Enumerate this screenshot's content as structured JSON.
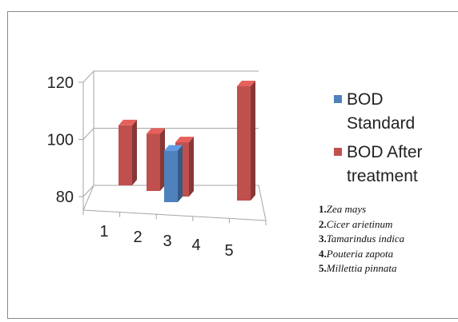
{
  "chart_data": {
    "type": "bar",
    "subtype": "3d-column",
    "categories": [
      "1",
      "2",
      "3",
      "4",
      "5"
    ],
    "series": [
      {
        "name": "BOD Standard",
        "color": "#4f81bd",
        "values": [
          null,
          null,
          98,
          null,
          null
        ]
      },
      {
        "name": "BOD After treatment",
        "color": "#c0504d",
        "values": [
          101,
          100,
          null,
          99,
          120
        ]
      }
    ],
    "ylim": [
      80,
      120
    ],
    "yticks": [
      "80",
      "100",
      "120"
    ],
    "grid": true,
    "legend_position": "right"
  },
  "legend": [
    {
      "label": "BOD Standard",
      "color": "#4f81bd"
    },
    {
      "label": "BOD After treatment",
      "color": "#c0504d"
    }
  ],
  "species": [
    {
      "num": "1.",
      "name": "Zea mays"
    },
    {
      "num": "2.",
      "name": "Cicer arietinum"
    },
    {
      "num": "3.",
      "name": "Tamarindus indica"
    },
    {
      "num": "4.",
      "name": "Pouteria zapota"
    },
    {
      "num": "5.",
      "name": "Millettia  pinnata"
    }
  ]
}
